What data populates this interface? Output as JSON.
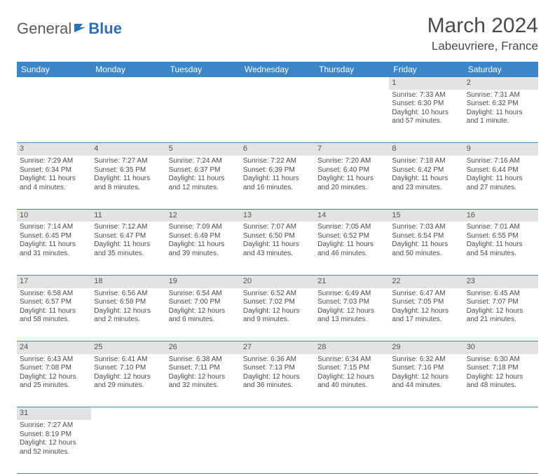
{
  "logo": {
    "general": "General",
    "blue": "Blue"
  },
  "title": "March 2024",
  "location": "Labeuvriere, France",
  "colors": {
    "header_bg": "#3a86c8",
    "header_text": "#ffffff",
    "daynum_bg": "#e3e3e3",
    "border": "#3a86c8",
    "text": "#4a4a4a"
  },
  "weekdays": [
    "Sunday",
    "Monday",
    "Tuesday",
    "Wednesday",
    "Thursday",
    "Friday",
    "Saturday"
  ],
  "weeks": [
    {
      "nums": [
        "",
        "",
        "",
        "",
        "",
        "1",
        "2"
      ],
      "cells": [
        null,
        null,
        null,
        null,
        null,
        {
          "sunrise": "Sunrise: 7:33 AM",
          "sunset": "Sunset: 6:30 PM",
          "daylight": "Daylight: 10 hours and 57 minutes."
        },
        {
          "sunrise": "Sunrise: 7:31 AM",
          "sunset": "Sunset: 6:32 PM",
          "daylight": "Daylight: 11 hours and 1 minute."
        }
      ]
    },
    {
      "nums": [
        "3",
        "4",
        "5",
        "6",
        "7",
        "8",
        "9"
      ],
      "cells": [
        {
          "sunrise": "Sunrise: 7:29 AM",
          "sunset": "Sunset: 6:34 PM",
          "daylight": "Daylight: 11 hours and 4 minutes."
        },
        {
          "sunrise": "Sunrise: 7:27 AM",
          "sunset": "Sunset: 6:35 PM",
          "daylight": "Daylight: 11 hours and 8 minutes."
        },
        {
          "sunrise": "Sunrise: 7:24 AM",
          "sunset": "Sunset: 6:37 PM",
          "daylight": "Daylight: 11 hours and 12 minutes."
        },
        {
          "sunrise": "Sunrise: 7:22 AM",
          "sunset": "Sunset: 6:39 PM",
          "daylight": "Daylight: 11 hours and 16 minutes."
        },
        {
          "sunrise": "Sunrise: 7:20 AM",
          "sunset": "Sunset: 6:40 PM",
          "daylight": "Daylight: 11 hours and 20 minutes."
        },
        {
          "sunrise": "Sunrise: 7:18 AM",
          "sunset": "Sunset: 6:42 PM",
          "daylight": "Daylight: 11 hours and 23 minutes."
        },
        {
          "sunrise": "Sunrise: 7:16 AM",
          "sunset": "Sunset: 6:44 PM",
          "daylight": "Daylight: 11 hours and 27 minutes."
        }
      ]
    },
    {
      "nums": [
        "10",
        "11",
        "12",
        "13",
        "14",
        "15",
        "16"
      ],
      "cells": [
        {
          "sunrise": "Sunrise: 7:14 AM",
          "sunset": "Sunset: 6:45 PM",
          "daylight": "Daylight: 11 hours and 31 minutes."
        },
        {
          "sunrise": "Sunrise: 7:12 AM",
          "sunset": "Sunset: 6:47 PM",
          "daylight": "Daylight: 11 hours and 35 minutes."
        },
        {
          "sunrise": "Sunrise: 7:09 AM",
          "sunset": "Sunset: 6:49 PM",
          "daylight": "Daylight: 11 hours and 39 minutes."
        },
        {
          "sunrise": "Sunrise: 7:07 AM",
          "sunset": "Sunset: 6:50 PM",
          "daylight": "Daylight: 11 hours and 43 minutes."
        },
        {
          "sunrise": "Sunrise: 7:05 AM",
          "sunset": "Sunset: 6:52 PM",
          "daylight": "Daylight: 11 hours and 46 minutes."
        },
        {
          "sunrise": "Sunrise: 7:03 AM",
          "sunset": "Sunset: 6:54 PM",
          "daylight": "Daylight: 11 hours and 50 minutes."
        },
        {
          "sunrise": "Sunrise: 7:01 AM",
          "sunset": "Sunset: 6:55 PM",
          "daylight": "Daylight: 11 hours and 54 minutes."
        }
      ]
    },
    {
      "nums": [
        "17",
        "18",
        "19",
        "20",
        "21",
        "22",
        "23"
      ],
      "cells": [
        {
          "sunrise": "Sunrise: 6:58 AM",
          "sunset": "Sunset: 6:57 PM",
          "daylight": "Daylight: 11 hours and 58 minutes."
        },
        {
          "sunrise": "Sunrise: 6:56 AM",
          "sunset": "Sunset: 6:58 PM",
          "daylight": "Daylight: 12 hours and 2 minutes."
        },
        {
          "sunrise": "Sunrise: 6:54 AM",
          "sunset": "Sunset: 7:00 PM",
          "daylight": "Daylight: 12 hours and 6 minutes."
        },
        {
          "sunrise": "Sunrise: 6:52 AM",
          "sunset": "Sunset: 7:02 PM",
          "daylight": "Daylight: 12 hours and 9 minutes."
        },
        {
          "sunrise": "Sunrise: 6:49 AM",
          "sunset": "Sunset: 7:03 PM",
          "daylight": "Daylight: 12 hours and 13 minutes."
        },
        {
          "sunrise": "Sunrise: 6:47 AM",
          "sunset": "Sunset: 7:05 PM",
          "daylight": "Daylight: 12 hours and 17 minutes."
        },
        {
          "sunrise": "Sunrise: 6:45 AM",
          "sunset": "Sunset: 7:07 PM",
          "daylight": "Daylight: 12 hours and 21 minutes."
        }
      ]
    },
    {
      "nums": [
        "24",
        "25",
        "26",
        "27",
        "28",
        "29",
        "30"
      ],
      "cells": [
        {
          "sunrise": "Sunrise: 6:43 AM",
          "sunset": "Sunset: 7:08 PM",
          "daylight": "Daylight: 12 hours and 25 minutes."
        },
        {
          "sunrise": "Sunrise: 6:41 AM",
          "sunset": "Sunset: 7:10 PM",
          "daylight": "Daylight: 12 hours and 29 minutes."
        },
        {
          "sunrise": "Sunrise: 6:38 AM",
          "sunset": "Sunset: 7:11 PM",
          "daylight": "Daylight: 12 hours and 32 minutes."
        },
        {
          "sunrise": "Sunrise: 6:36 AM",
          "sunset": "Sunset: 7:13 PM",
          "daylight": "Daylight: 12 hours and 36 minutes."
        },
        {
          "sunrise": "Sunrise: 6:34 AM",
          "sunset": "Sunset: 7:15 PM",
          "daylight": "Daylight: 12 hours and 40 minutes."
        },
        {
          "sunrise": "Sunrise: 6:32 AM",
          "sunset": "Sunset: 7:16 PM",
          "daylight": "Daylight: 12 hours and 44 minutes."
        },
        {
          "sunrise": "Sunrise: 6:30 AM",
          "sunset": "Sunset: 7:18 PM",
          "daylight": "Daylight: 12 hours and 48 minutes."
        }
      ]
    },
    {
      "nums": [
        "31",
        "",
        "",
        "",
        "",
        "",
        ""
      ],
      "cells": [
        {
          "sunrise": "Sunrise: 7:27 AM",
          "sunset": "Sunset: 8:19 PM",
          "daylight": "Daylight: 12 hours and 52 minutes."
        },
        null,
        null,
        null,
        null,
        null,
        null
      ]
    }
  ]
}
